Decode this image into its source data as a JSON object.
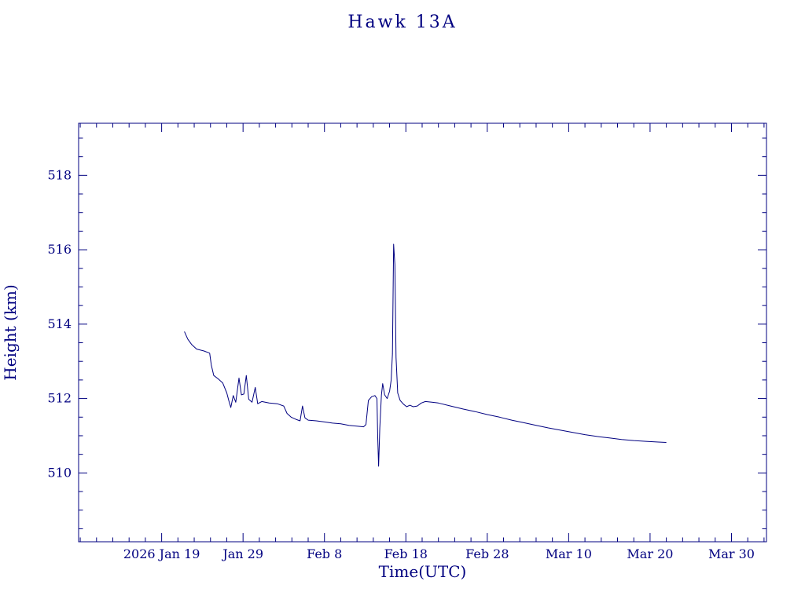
{
  "page": {
    "background": "#ffffff",
    "accent_color": "#000080"
  },
  "chart_data": {
    "type": "line",
    "title": "Hawk 13A",
    "xlabel": "Time(UTC)",
    "ylabel": "Height (km)",
    "x_unit": "days since 2026 Jan 19",
    "xlim": [
      -10.2,
      74.3
    ],
    "ylim": [
      508.15,
      519.4
    ],
    "grid": false,
    "legend": "none",
    "line_color": "#000080",
    "x_ticks": [
      {
        "value": 0,
        "label": "2026 Jan 19"
      },
      {
        "value": 10,
        "label": "Jan 29"
      },
      {
        "value": 20,
        "label": "Feb 8"
      },
      {
        "value": 30,
        "label": "Feb 18"
      },
      {
        "value": 40,
        "label": "Feb 28"
      },
      {
        "value": 50,
        "label": "Mar 10"
      },
      {
        "value": 60,
        "label": "Mar 20"
      },
      {
        "value": 70,
        "label": "Mar 30"
      }
    ],
    "y_ticks": [
      510,
      512,
      514,
      516,
      518
    ],
    "x_minor_step": 2,
    "y_minor_step": 0.5,
    "series": [
      {
        "name": "height",
        "points": [
          [
            2.8,
            513.8
          ],
          [
            3.2,
            513.6
          ],
          [
            3.7,
            513.45
          ],
          [
            4.3,
            513.33
          ],
          [
            5.2,
            513.28
          ],
          [
            5.9,
            513.22
          ],
          [
            6.1,
            512.9
          ],
          [
            6.4,
            512.62
          ],
          [
            7.0,
            512.52
          ],
          [
            7.5,
            512.42
          ],
          [
            8.0,
            512.15
          ],
          [
            8.3,
            511.9
          ],
          [
            8.5,
            511.76
          ],
          [
            8.8,
            512.08
          ],
          [
            9.1,
            511.9
          ],
          [
            9.5,
            512.55
          ],
          [
            9.8,
            512.1
          ],
          [
            10.1,
            512.12
          ],
          [
            10.4,
            512.62
          ],
          [
            10.7,
            511.98
          ],
          [
            11.1,
            511.9
          ],
          [
            11.5,
            512.3
          ],
          [
            11.8,
            511.86
          ],
          [
            12.3,
            511.92
          ],
          [
            13.2,
            511.88
          ],
          [
            14.2,
            511.86
          ],
          [
            15.0,
            511.8
          ],
          [
            15.4,
            511.6
          ],
          [
            15.9,
            511.5
          ],
          [
            16.5,
            511.44
          ],
          [
            17.0,
            511.4
          ],
          [
            17.3,
            511.8
          ],
          [
            17.6,
            511.48
          ],
          [
            18.0,
            511.42
          ],
          [
            19.0,
            511.4
          ],
          [
            20.0,
            511.37
          ],
          [
            21.0,
            511.34
          ],
          [
            22.0,
            511.32
          ],
          [
            23.0,
            511.28
          ],
          [
            24.0,
            511.26
          ],
          [
            24.8,
            511.24
          ],
          [
            25.1,
            511.3
          ],
          [
            25.4,
            511.95
          ],
          [
            25.8,
            512.05
          ],
          [
            26.2,
            512.08
          ],
          [
            26.45,
            512.0
          ],
          [
            26.55,
            510.95
          ],
          [
            26.65,
            510.18
          ],
          [
            26.8,
            511.2
          ],
          [
            27.0,
            512.1
          ],
          [
            27.15,
            512.4
          ],
          [
            27.4,
            512.1
          ],
          [
            27.7,
            512.0
          ],
          [
            28.0,
            512.2
          ],
          [
            28.2,
            512.5
          ],
          [
            28.35,
            513.2
          ],
          [
            28.5,
            516.15
          ],
          [
            28.65,
            515.6
          ],
          [
            28.8,
            513.1
          ],
          [
            29.0,
            512.15
          ],
          [
            29.3,
            511.95
          ],
          [
            29.7,
            511.85
          ],
          [
            30.1,
            511.78
          ],
          [
            30.5,
            511.82
          ],
          [
            30.9,
            511.78
          ],
          [
            31.4,
            511.8
          ],
          [
            31.9,
            511.88
          ],
          [
            32.4,
            511.92
          ],
          [
            33.2,
            511.9
          ],
          [
            34.0,
            511.88
          ],
          [
            35.5,
            511.8
          ],
          [
            37.0,
            511.72
          ],
          [
            38.5,
            511.65
          ],
          [
            40.0,
            511.57
          ],
          [
            41.5,
            511.5
          ],
          [
            43.0,
            511.42
          ],
          [
            44.5,
            511.35
          ],
          [
            46.0,
            511.28
          ],
          [
            47.5,
            511.21
          ],
          [
            49.0,
            511.15
          ],
          [
            50.5,
            511.09
          ],
          [
            52.0,
            511.03
          ],
          [
            53.5,
            510.98
          ],
          [
            55.0,
            510.94
          ],
          [
            56.5,
            510.9
          ],
          [
            58.0,
            510.87
          ],
          [
            59.5,
            510.85
          ],
          [
            61.0,
            510.83
          ],
          [
            62.0,
            510.82
          ]
        ]
      }
    ]
  }
}
